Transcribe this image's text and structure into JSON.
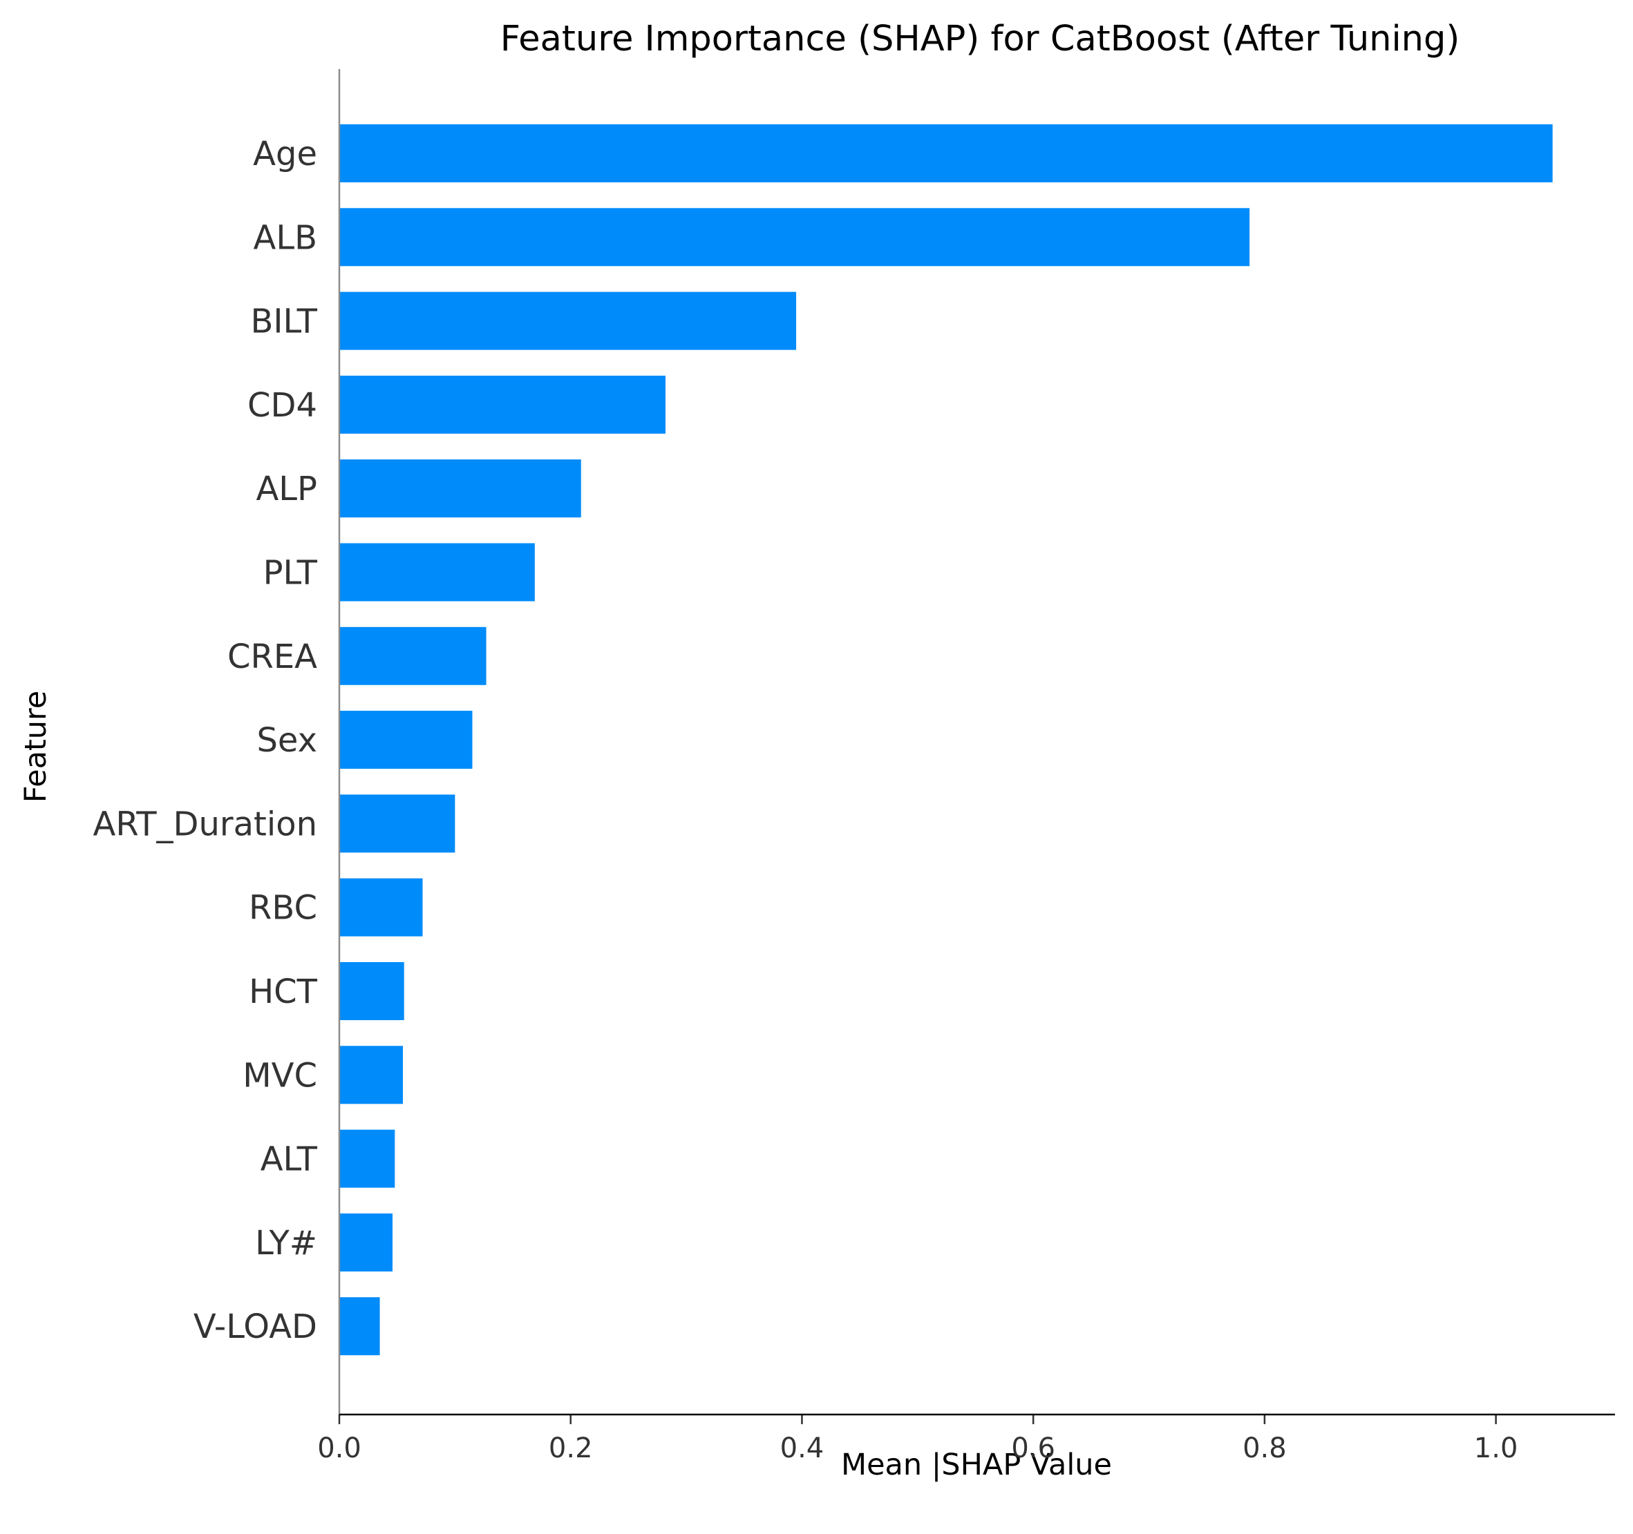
{
  "chart_data": {
    "type": "bar",
    "orientation": "horizontal",
    "title": "Feature Importance (SHAP) for CatBoost (After Tuning)",
    "xlabel": "Mean |SHAP Value",
    "ylabel": "Feature",
    "categories": [
      "Age",
      "ALB",
      "BILT",
      "CD4",
      "ALP",
      "PLT",
      "CREA",
      "Sex",
      "ART_Duration",
      "RBC",
      "HCT",
      "MVC",
      "ALT",
      "LY#",
      "V-LOAD"
    ],
    "values": [
      1.049,
      0.787,
      0.395,
      0.282,
      0.209,
      0.169,
      0.127,
      0.115,
      0.1,
      0.072,
      0.056,
      0.055,
      0.048,
      0.046,
      0.035
    ],
    "xlim": [
      0,
      1.103
    ],
    "xticks": [
      0.0,
      0.2,
      0.4,
      0.6,
      0.8,
      1.0
    ],
    "xtick_labels": [
      "0.0",
      "0.2",
      "0.4",
      "0.6",
      "0.8",
      "1.0"
    ],
    "grid": false,
    "bar_color": "#008bfb",
    "axis_color": "#333333"
  }
}
